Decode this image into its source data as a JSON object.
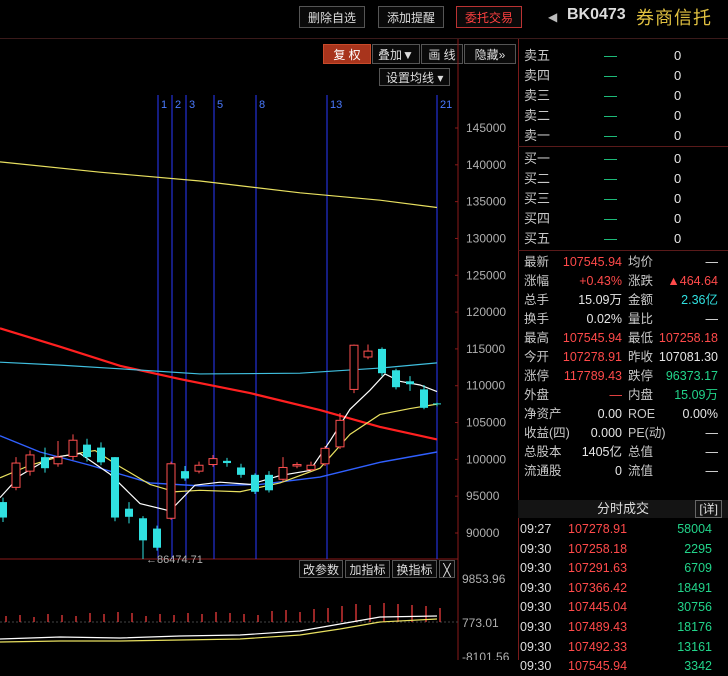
{
  "topbar": {
    "btn_delete": "删除自选",
    "btn_alert": "添加提醒",
    "btn_trade": "委托交易",
    "code": "BK0473",
    "name": "券商信托"
  },
  "toolbar": {
    "fuquan": "复 权",
    "overlay": "叠加▼",
    "draw": "画 线",
    "hide": "隐藏»",
    "ma_settings": "设置均线 ▾"
  },
  "chart": {
    "y_ticks": [
      "145000",
      "140000",
      "135000",
      "130000",
      "125000",
      "120000",
      "115000",
      "110000",
      "105000",
      "100000",
      "95000",
      "90000"
    ],
    "markers": [
      "1",
      "2",
      "3",
      "5",
      "8",
      "13",
      "21"
    ],
    "low_annotation": "←86474.71",
    "sub_buttons": {
      "params": "改参数",
      "add": "加指标",
      "swap": "换指标",
      "close": "╳"
    },
    "sub_ticks": [
      "9853.96",
      "773.01",
      "-8101.56"
    ],
    "colors": {
      "ma_red": "#ff2020",
      "ma_yellow": "#e8e060",
      "ma_cyan": "#40c0e0",
      "ma_blue": "#3060ff",
      "ma_white": "#ffffff",
      "up": "#ff5050",
      "down": "#30e0e0"
    }
  },
  "orderbook": {
    "asks": [
      {
        "label": "卖五",
        "price": "—",
        "vol": "0"
      },
      {
        "label": "卖四",
        "price": "—",
        "vol": "0"
      },
      {
        "label": "卖三",
        "price": "—",
        "vol": "0"
      },
      {
        "label": "卖二",
        "price": "—",
        "vol": "0"
      },
      {
        "label": "卖一",
        "price": "—",
        "vol": "0"
      }
    ],
    "bids": [
      {
        "label": "买一",
        "price": "—",
        "vol": "0"
      },
      {
        "label": "买二",
        "price": "—",
        "vol": "0"
      },
      {
        "label": "买三",
        "price": "—",
        "vol": "0"
      },
      {
        "label": "买四",
        "price": "—",
        "vol": "0"
      },
      {
        "label": "买五",
        "price": "—",
        "vol": "0"
      }
    ]
  },
  "stats": {
    "latest_l": "最新",
    "latest": "107545.94",
    "avg_l": "均价",
    "avg": "—",
    "chg_pct_l": "涨幅",
    "chg_pct": "+0.43%",
    "chg_l": "涨跌",
    "chg": "▲464.64",
    "vol_l": "总手",
    "vol": "15.09万",
    "amt_l": "金额",
    "amt": "2.36亿",
    "turn_l": "换手",
    "turn": "0.02%",
    "ratio_l": "量比",
    "ratio": "—",
    "high_l": "最高",
    "high": "107545.94",
    "low_l": "最低",
    "low": "107258.18",
    "open_l": "今开",
    "open": "107278.91",
    "prev_l": "昨收",
    "prev": "107081.30",
    "limup_l": "涨停",
    "limup": "117789.43",
    "limdn_l": "跌停",
    "limdn": "96373.17",
    "outer_l": "外盘",
    "outer": "—",
    "inner_l": "内盘",
    "inner": "15.09万",
    "nav_l": "净资产",
    "nav": "0.00",
    "roe_l": "ROE",
    "roe": "0.00%",
    "eps_l": "收益(四)",
    "eps": "0.000",
    "pe_l": "PE(动)",
    "pe": "—",
    "cap_l": "总股本",
    "cap": "1405亿",
    "mv_l": "总值",
    "mv": "—",
    "float_l": "流通股",
    "float": "0",
    "fv_l": "流值",
    "fv": "—"
  },
  "trades": {
    "title": "分时成交",
    "detail": "[详]",
    "rows": [
      {
        "time": "09:27",
        "price": "107278.91",
        "vol": "58004"
      },
      {
        "time": "09:30",
        "price": "107258.18",
        "vol": "2295"
      },
      {
        "time": "09:30",
        "price": "107291.63",
        "vol": "6709"
      },
      {
        "time": "09:30",
        "price": "107366.42",
        "vol": "18491"
      },
      {
        "time": "09:30",
        "price": "107445.04",
        "vol": "30756"
      },
      {
        "time": "09:30",
        "price": "107489.43",
        "vol": "18176"
      },
      {
        "time": "09:30",
        "price": "107492.33",
        "vol": "13161"
      },
      {
        "time": "09:30",
        "price": "107545.94",
        "vol": "3342"
      }
    ]
  }
}
